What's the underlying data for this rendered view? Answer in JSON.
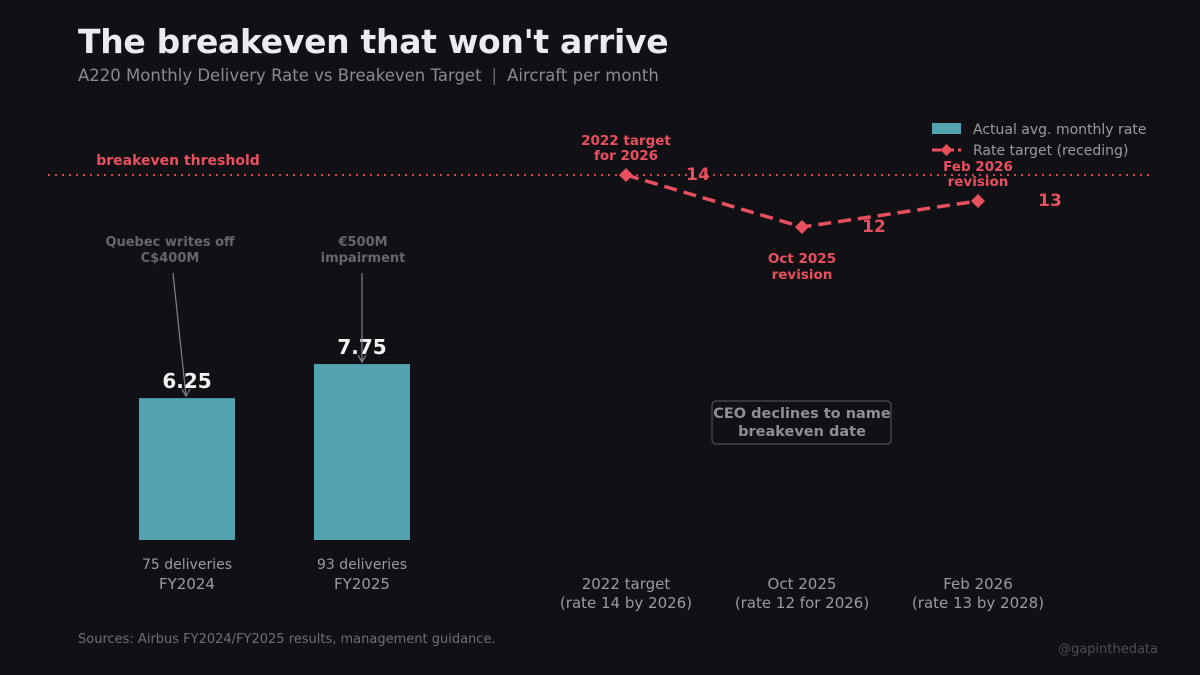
{
  "header": {
    "title": "The breakeven that won't arrive",
    "subtitle_main": "A220 Monthly Delivery Rate vs Breakeven Target",
    "subtitle_sep": "|",
    "subtitle_unit": "Aircraft per month"
  },
  "footer": {
    "source": "Sources: Airbus FY2024/FY2025 results, management guidance.",
    "credit": "@gapinthedata"
  },
  "colors": {
    "background": "#111115",
    "bar": "#52a2af",
    "target": "#e9505f",
    "muted_text": "#8a8a93",
    "annotation": "#65656e"
  },
  "chart_data": {
    "type": "bar+line",
    "ylim": [
      0,
      20
    ],
    "breakeven": {
      "value": 14,
      "label": "breakeven threshold"
    },
    "bars": [
      {
        "category": "FY2024",
        "value": 6.25,
        "value_label": "6.25",
        "deliveries": "75 deliveries",
        "annotation": [
          "Quebec writes off",
          "C$400M"
        ]
      },
      {
        "category": "FY2025",
        "value": 7.75,
        "value_label": "7.75",
        "deliveries": "93 deliveries",
        "annotation": [
          "€500M",
          "impairment"
        ]
      }
    ],
    "targets": [
      {
        "rate": 14,
        "rate_label": "14",
        "point_label": [
          "2022 target",
          "for 2026"
        ],
        "label_position": "above",
        "category": [
          "2022 target",
          "(rate 14 by 2026)"
        ]
      },
      {
        "rate": 12,
        "rate_label": "12",
        "point_label": [
          "Oct 2025",
          "revision"
        ],
        "label_position": "below",
        "category": [
          "Oct 2025",
          "(rate 12 for 2026)"
        ]
      },
      {
        "rate": 13,
        "rate_label": "13",
        "point_label": [
          "Feb 2026",
          "revision"
        ],
        "label_position": "above",
        "category": [
          "Feb 2026",
          "(rate 13 by 2028)"
        ]
      }
    ],
    "callout": [
      "CEO declines to name",
      "breakeven date"
    ],
    "legend": {
      "position": "top-right",
      "items": [
        {
          "label": "Actual avg. monthly rate",
          "style": "bar"
        },
        {
          "label": "Rate target (receding)",
          "style": "dashed-diamond"
        }
      ]
    }
  }
}
